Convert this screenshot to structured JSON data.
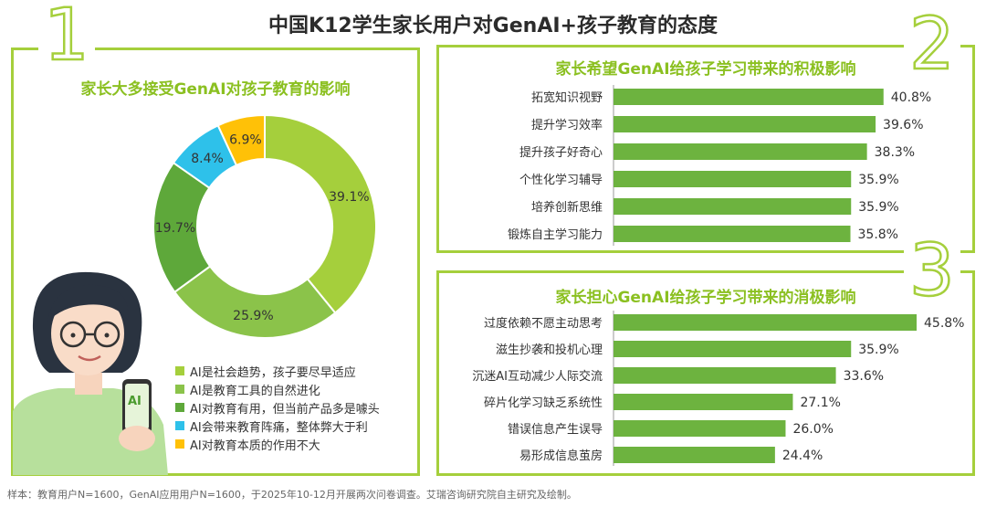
{
  "title": "中国K12学生家长用户对GenAI+孩子教育的态度",
  "panel_numbers": [
    "1",
    "2",
    "3"
  ],
  "colors": {
    "accent": "#a5cf3c",
    "title_green": "#8bc021",
    "bar_green": "#6db33f",
    "pie": [
      "#a5cf3c",
      "#8bc34a",
      "#5ea83a",
      "#2ec1ea",
      "#ffc107"
    ]
  },
  "chart_data": [
    {
      "type": "pie",
      "title": "家长大多接受GenAI对孩子教育的影响",
      "categories": [
        "AI是社会趋势，孩子要尽早适应",
        "AI是教育工具的自然进化",
        "AI对教育有用，但当前产品多是噱头",
        "AI会带来教育阵痛，整体弊大于利",
        "AI对教育本质的作用不大"
      ],
      "values": [
        39.1,
        25.9,
        19.7,
        8.4,
        6.9
      ],
      "labels": [
        "39.1%",
        "25.9%",
        "19.7%",
        "8.4%",
        "6.9%"
      ]
    },
    {
      "type": "bar",
      "title": "家长希望GenAI给孩子学习带来的积极影响",
      "categories": [
        "拓宽知识视野",
        "提升学习效率",
        "提升孩子好奇心",
        "个性化学习辅导",
        "培养创新思维",
        "锻炼自主学习能力"
      ],
      "values": [
        40.8,
        39.6,
        38.3,
        35.9,
        35.9,
        35.8
      ],
      "labels": [
        "40.8%",
        "39.6%",
        "38.3%",
        "35.9%",
        "35.9%",
        "35.8%"
      ],
      "xlim": [
        0,
        45.8
      ]
    },
    {
      "type": "bar",
      "title": "家长担心GenAI给孩子学习带来的消极影响",
      "categories": [
        "过度依赖不愿主动思考",
        "滋生抄袭和投机心理",
        "沉迷AI互动减少人际交流",
        "碎片化学习缺乏系统性",
        "错误信息产生误导",
        "易形成信息茧房"
      ],
      "values": [
        45.8,
        35.9,
        33.6,
        27.1,
        26.0,
        24.4
      ],
      "labels": [
        "45.8%",
        "35.9%",
        "33.6%",
        "27.1%",
        "26.0%",
        "24.4%"
      ],
      "xlim": [
        0,
        45.8
      ]
    }
  ],
  "phone_label": "AI",
  "footnote": "样本：教育用户N=1600，GenAI应用用户N=1600，于2025年10-12月开展两次问卷调查。艾瑞咨询研究院自主研究及绘制。"
}
